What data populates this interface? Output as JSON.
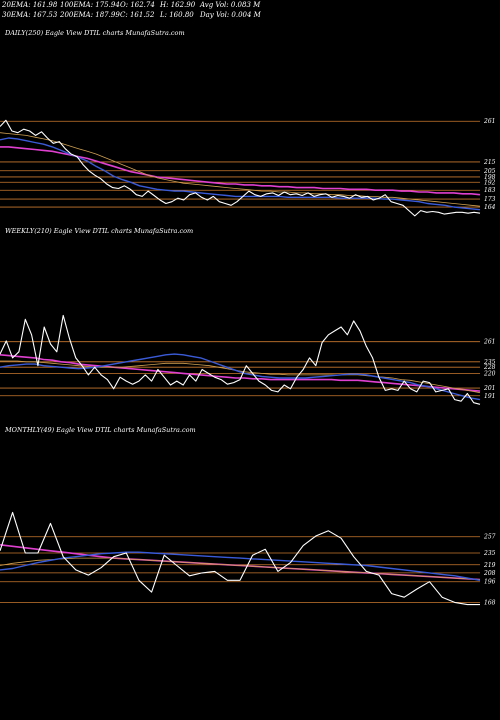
{
  "header": {
    "row1": [
      "20EMA: 161.98",
      "100EMA: 175.94",
      "O: 162.74",
      "H: 162.90",
      "Avg Vol: 0.083 M"
    ],
    "row2": [
      "30EMA: 167.53",
      "200EMA: 187.99",
      "C: 161.52",
      "L: 160.80",
      "Day Vol: 0.004 M"
    ]
  },
  "colors": {
    "background": "#000000",
    "price": "#ffffff",
    "ema_short": "#3a5bd9",
    "ema_long": "#e040d0",
    "ema_mid": "#cfa050",
    "levels": "#c8782e"
  },
  "chart_data": [
    {
      "type": "line",
      "title": "DAILY(250) Eagle  View  DTIL  charts MunafaSutra.com",
      "levels": [
        261,
        215,
        205,
        198,
        192,
        183,
        173,
        164
      ],
      "level_labels": [
        "261",
        "215",
        "205",
        "198",
        "192",
        "183",
        "173",
        "164"
      ],
      "ylim": [
        155,
        285
      ],
      "series": [
        {
          "role": "price",
          "values": [
            255,
            262,
            250,
            248,
            252,
            250,
            245,
            249,
            242,
            236,
            238,
            230,
            224,
            221,
            212,
            205,
            200,
            196,
            190,
            186,
            185,
            188,
            184,
            178,
            176,
            182,
            177,
            172,
            168,
            170,
            174,
            172,
            178,
            180,
            175,
            172,
            176,
            170,
            168,
            166,
            170,
            176,
            182,
            178,
            176,
            179,
            180,
            177,
            181,
            178,
            179,
            177,
            180,
            176,
            178,
            179,
            175,
            177,
            176,
            174,
            178,
            175,
            176,
            172,
            174,
            178,
            170,
            168,
            166,
            160,
            154,
            160,
            158,
            159,
            158,
            156,
            157,
            158,
            158,
            157,
            158,
            157
          ]
        },
        {
          "role": "ema_short",
          "values": [
            240,
            242,
            241,
            239,
            237,
            235,
            232,
            228,
            224,
            220,
            216,
            210,
            205,
            199,
            195,
            192,
            188,
            186,
            184,
            183,
            182,
            182,
            181,
            180,
            179,
            178,
            177,
            176,
            176,
            176,
            176,
            176,
            176,
            175,
            175,
            175,
            175,
            175,
            175,
            174,
            174,
            174,
            174,
            174,
            173,
            173,
            172,
            171,
            170,
            168,
            167,
            166,
            164,
            163,
            162,
            161
          ]
        },
        {
          "role": "ema_mid",
          "values": [
            248,
            247,
            246,
            245,
            243,
            241,
            239,
            236,
            233,
            230,
            227,
            224,
            220,
            216,
            212,
            208,
            204,
            200,
            197,
            195,
            193,
            191,
            190,
            189,
            188,
            187,
            186,
            185,
            184,
            183,
            182,
            182,
            181,
            181,
            180,
            180,
            179,
            179,
            178,
            178,
            177,
            177,
            176,
            176,
            175,
            175,
            174,
            173,
            172,
            171,
            170,
            169,
            168,
            167,
            166,
            165
          ]
        },
        {
          "role": "ema_long",
          "values": [
            232,
            232,
            231,
            230,
            229,
            228,
            227,
            225,
            223,
            221,
            219,
            216,
            213,
            210,
            207,
            204,
            202,
            200,
            198,
            197,
            196,
            195,
            194,
            193,
            192,
            191,
            190,
            190,
            189,
            189,
            188,
            188,
            187,
            187,
            186,
            186,
            186,
            185,
            185,
            185,
            184,
            184,
            184,
            183,
            183,
            183,
            182,
            182,
            181,
            181,
            180,
            180,
            180,
            179,
            179,
            178
          ]
        }
      ]
    },
    {
      "type": "line",
      "title": "WEEKLY(210) Eagle  View  DTIL  charts MunafaSutra.com",
      "levels": [
        261,
        235,
        228,
        220,
        201,
        191
      ],
      "level_labels": [
        "261",
        "235",
        "228",
        "220",
        "201",
        "191"
      ],
      "ylim": [
        170,
        315
      ],
      "series": [
        {
          "role": "price",
          "values": [
            245,
            262,
            240,
            248,
            290,
            270,
            230,
            280,
            258,
            248,
            295,
            265,
            240,
            230,
            218,
            228,
            218,
            212,
            200,
            215,
            210,
            206,
            210,
            218,
            210,
            225,
            215,
            205,
            210,
            205,
            218,
            210,
            225,
            220,
            215,
            212,
            206,
            208,
            212,
            230,
            220,
            210,
            205,
            198,
            196,
            205,
            200,
            215,
            225,
            240,
            230,
            260,
            270,
            275,
            280,
            270,
            288,
            275,
            255,
            240,
            215,
            198,
            200,
            198,
            210,
            200,
            196,
            210,
            208,
            196,
            198,
            200,
            186,
            184,
            194,
            182,
            180
          ]
        },
        {
          "role": "ema_short",
          "values": [
            228,
            230,
            231,
            232,
            232,
            230,
            229,
            228,
            227,
            226,
            227,
            228,
            230,
            232,
            234,
            236,
            238,
            240,
            242,
            244,
            245,
            244,
            242,
            240,
            236,
            232,
            228,
            224,
            220,
            218,
            216,
            215,
            214,
            214,
            214,
            214,
            215,
            216,
            217,
            218,
            219,
            219,
            218,
            216,
            214,
            212,
            210,
            208,
            205,
            203,
            200,
            197,
            194,
            191,
            188,
            186
          ]
        },
        {
          "role": "ema_mid",
          "values": [
            236,
            236,
            236,
            235,
            235,
            234,
            233,
            232,
            231,
            230,
            229,
            228,
            228,
            228,
            228,
            229,
            230,
            231,
            232,
            233,
            233,
            233,
            232,
            231,
            230,
            228,
            226,
            224,
            222,
            221,
            220,
            219,
            219,
            218,
            218,
            218,
            218,
            218,
            218,
            218,
            218,
            218,
            217,
            216,
            215,
            214,
            212,
            211,
            209,
            207,
            205,
            203,
            201,
            199,
            197,
            195
          ]
        },
        {
          "role": "ema_long",
          "values": [
            244,
            243,
            242,
            241,
            240,
            238,
            237,
            235,
            234,
            232,
            231,
            230,
            229,
            228,
            227,
            226,
            225,
            224,
            223,
            222,
            221,
            220,
            219,
            218,
            217,
            216,
            215,
            214,
            214,
            213,
            213,
            212,
            212,
            212,
            212,
            212,
            212,
            212,
            212,
            211,
            211,
            211,
            210,
            209,
            208,
            207,
            206,
            205,
            204,
            203,
            202,
            201,
            200,
            199,
            198,
            197
          ]
        }
      ]
    },
    {
      "type": "line",
      "title": "MONTHLY(49) Eagle  View  DTIL  charts MunafaSutra.com",
      "levels": [
        257,
        235,
        219,
        208,
        196,
        168
      ],
      "level_labels": [
        "257",
        "235",
        "219",
        "208",
        "196",
        "168"
      ],
      "ylim": [
        155,
        300
      ],
      "series": [
        {
          "role": "price",
          "values": [
            238,
            290,
            235,
            235,
            275,
            230,
            212,
            205,
            215,
            230,
            235,
            198,
            182,
            232,
            218,
            204,
            208,
            210,
            198,
            198,
            232,
            240,
            210,
            222,
            245,
            258,
            265,
            255,
            230,
            210,
            205,
            180,
            175,
            186,
            196,
            175,
            168,
            165,
            165
          ]
        },
        {
          "role": "ema_short",
          "values": [
            212,
            214,
            218,
            222,
            225,
            228,
            230,
            232,
            234,
            235,
            236,
            236,
            235,
            234,
            233,
            232,
            231,
            230,
            229,
            228,
            227,
            226,
            225,
            224,
            223,
            222,
            221,
            220,
            219,
            218,
            216,
            214,
            212,
            210,
            208,
            206,
            204,
            201,
            198
          ]
        },
        {
          "role": "ema_mid",
          "values": [
            218,
            221,
            223,
            225,
            226,
            227,
            228,
            228,
            228,
            228,
            227,
            226,
            225,
            224,
            223,
            222,
            221,
            220,
            219,
            218,
            217,
            216,
            215,
            214,
            213,
            212,
            211,
            210,
            209,
            208,
            207,
            206,
            205,
            204,
            203,
            202,
            201,
            200,
            199
          ]
        },
        {
          "role": "ema_long",
          "values": [
            246,
            244,
            242,
            240,
            238,
            236,
            234,
            232,
            230,
            228,
            227,
            226,
            225,
            224,
            223,
            222,
            221,
            220,
            219,
            218,
            217,
            216,
            215,
            214,
            213,
            212,
            211,
            210,
            209,
            208,
            207,
            206,
            205,
            204,
            203,
            202,
            201,
            200,
            199
          ]
        }
      ]
    }
  ]
}
